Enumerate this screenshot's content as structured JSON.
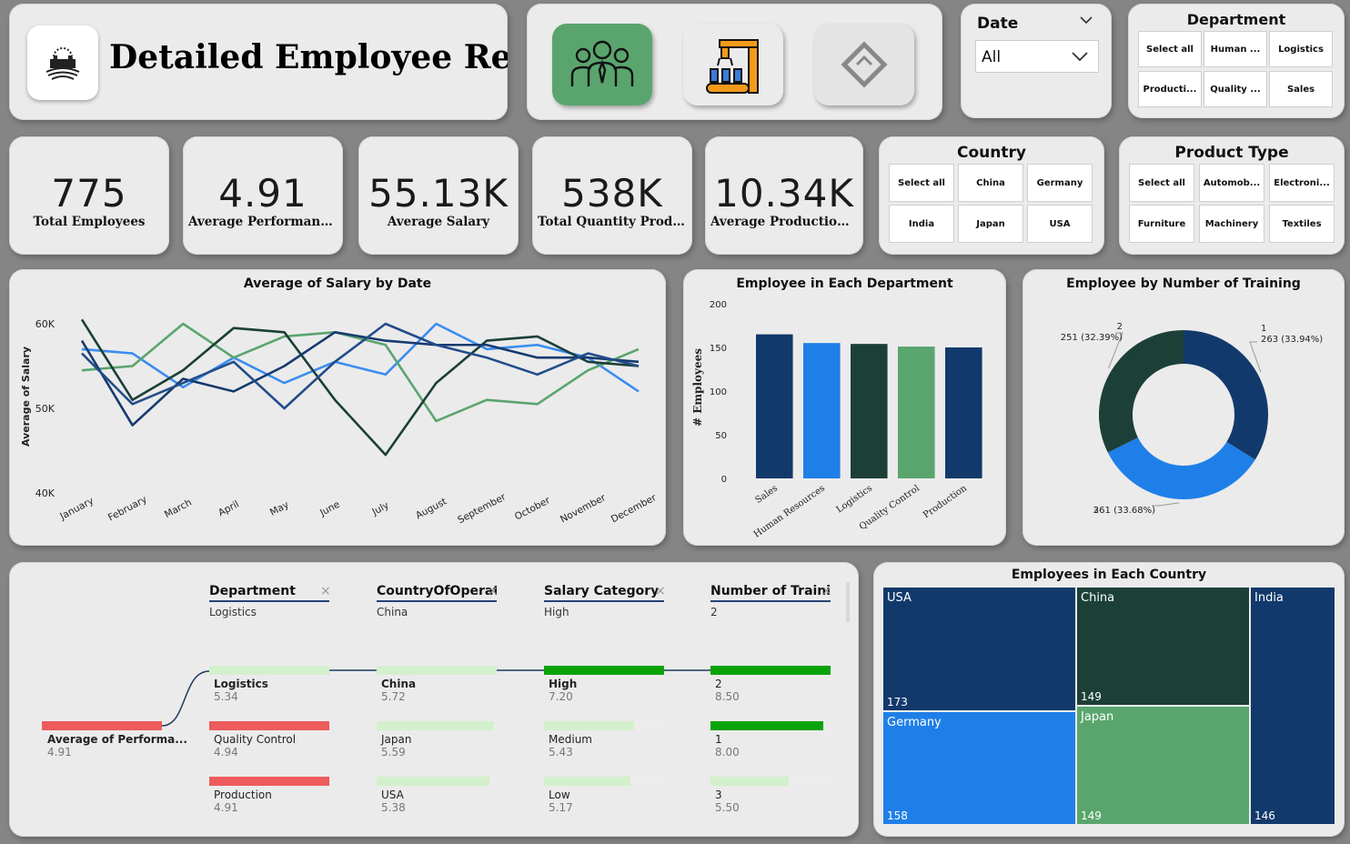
{
  "header": {
    "title": "Detailed Employee Report"
  },
  "nav": {
    "buttons": [
      {
        "name": "employees-nav-button",
        "icon": "people-group-icon",
        "active": true
      },
      {
        "name": "production-nav-button",
        "icon": "factory-robot-icon",
        "active": false
      },
      {
        "name": "other-nav-button",
        "icon": "diamond-tag-icon",
        "active": false
      }
    ]
  },
  "date_slicer": {
    "title": "Date",
    "value": "All"
  },
  "department_slicer": {
    "title": "Department",
    "options": [
      "Select all",
      "Human ...",
      "Logistics",
      "Producti...",
      "Quality ...",
      "Sales"
    ]
  },
  "country_slicer": {
    "title": "Country",
    "options": [
      "Select all",
      "China",
      "Germany",
      "India",
      "Japan",
      "USA"
    ]
  },
  "product_slicer": {
    "title": "Product Type",
    "options": [
      "Select all",
      "Automob...",
      "Electroni...",
      "Furniture",
      "Machinery",
      "Textiles"
    ]
  },
  "kpis": [
    {
      "value": "775",
      "label": "Total Employees"
    },
    {
      "value": "4.91",
      "label": "Average Performance R..."
    },
    {
      "value": "55.13K",
      "label": "Average Salary"
    },
    {
      "value": "538K",
      "label": "Total Quantity Produced"
    },
    {
      "value": "10.34K",
      "label": "Average Production Cost"
    }
  ],
  "chart_data": [
    {
      "type": "line",
      "title": "Average of Salary by Date",
      "ylabel": "Average of Salary",
      "x": [
        "January",
        "February",
        "March",
        "April",
        "May",
        "June",
        "July",
        "August",
        "September",
        "October",
        "November",
        "December"
      ],
      "yticks": [
        "40K",
        "50K",
        "60K"
      ],
      "ylim": [
        40000,
        60000
      ],
      "series": [
        {
          "color": "#3a8df0",
          "values": [
            57000,
            56500,
            52500,
            56000,
            53000,
            55500,
            54000,
            60000,
            57000,
            57500,
            56000,
            52000
          ]
        },
        {
          "color": "#5aa56e",
          "values": [
            54500,
            55000,
            60000,
            56000,
            58500,
            59000,
            57500,
            48500,
            51000,
            50500,
            54500,
            57000
          ]
        },
        {
          "color": "#1b3f38",
          "values": [
            60500,
            51000,
            54500,
            59500,
            59000,
            51000,
            44500,
            53000,
            58000,
            58500,
            55500,
            55000
          ]
        },
        {
          "color": "#163a6e",
          "values": [
            58000,
            48000,
            53500,
            52000,
            55000,
            59000,
            58000,
            57500,
            57500,
            56000,
            56000,
            55500
          ]
        },
        {
          "color": "#224d8a",
          "values": [
            56500,
            50500,
            53000,
            55500,
            50000,
            55500,
            60000,
            57500,
            56000,
            54000,
            56500,
            55000
          ]
        }
      ]
    },
    {
      "type": "bar",
      "title": "Employee in Each Department",
      "ylabel": "# Employees",
      "categories": [
        "Sales",
        "Human Resources",
        "Logistics",
        "Quality Control",
        "Production"
      ],
      "values": [
        165,
        155,
        154,
        151,
        150
      ],
      "colors": [
        "#12396b",
        "#1f7fe8",
        "#1c4038",
        "#5aa56e",
        "#12396b"
      ],
      "ylim": [
        0,
        200
      ],
      "yticks": [
        "0",
        "50",
        "100",
        "150",
        "200"
      ]
    },
    {
      "type": "pie",
      "title": "Employee by Number of Training",
      "slices": [
        {
          "name": "1",
          "value": 263,
          "label": "263 (33.94%)",
          "color": "#12396b"
        },
        {
          "name": "3",
          "value": 261,
          "label": "261 (33.68%)",
          "color": "#1f7fe8"
        },
        {
          "name": "2",
          "value": 251,
          "label": "251 (32.39%)",
          "color": "#1c4038"
        }
      ]
    },
    {
      "type": "treemap",
      "title": "Employees in Each Country",
      "items": [
        {
          "name": "USA",
          "value": 173,
          "color": "#12396b"
        },
        {
          "name": "China",
          "value": 149,
          "color": "#1c4038"
        },
        {
          "name": "India",
          "value": 146,
          "color": "#12396b"
        },
        {
          "name": "Germany",
          "value": 158,
          "color": "#1f7fe8"
        },
        {
          "name": "Japan",
          "value": 149,
          "color": "#5aa56e"
        }
      ]
    }
  ],
  "decomp_tree": {
    "root": {
      "label": "Average of Performa...",
      "value": "4.91"
    },
    "levels": [
      {
        "header": "Department",
        "selected": "Logistics",
        "nodes": [
          {
            "label": "Logistics",
            "value": "5.34",
            "fill": 1.0,
            "bold": true
          },
          {
            "label": "Quality Control",
            "value": "4.94",
            "fill": 1.0,
            "bold": false
          },
          {
            "label": "Production",
            "value": "4.91",
            "fill": 1.0,
            "bold": false
          }
        ]
      },
      {
        "header": "CountryOfOperati...",
        "selected": "China",
        "nodes": [
          {
            "label": "China",
            "value": "5.72",
            "fill": 1.0,
            "bold": true
          },
          {
            "label": "Japan",
            "value": "5.59",
            "fill": 0.98,
            "bold": false
          },
          {
            "label": "USA",
            "value": "5.38",
            "fill": 0.94,
            "bold": false
          }
        ]
      },
      {
        "header": "Salary Category",
        "selected": "High",
        "nodes": [
          {
            "label": "High",
            "value": "7.20",
            "fill": 1.0,
            "bold": true
          },
          {
            "label": "Medium",
            "value": "5.43",
            "fill": 0.75,
            "bold": false
          },
          {
            "label": "Low",
            "value": "5.17",
            "fill": 0.72,
            "bold": false
          }
        ]
      },
      {
        "header": "Number of Traini...",
        "selected": "2",
        "nodes": [
          {
            "label": "2",
            "value": "8.50",
            "fill": 1.0,
            "bold": false
          },
          {
            "label": "1",
            "value": "8.00",
            "fill": 0.94,
            "bold": false
          },
          {
            "label": "3",
            "value": "5.50",
            "fill": 0.65,
            "bold": false
          }
        ]
      }
    ],
    "close_symbol": "×"
  }
}
